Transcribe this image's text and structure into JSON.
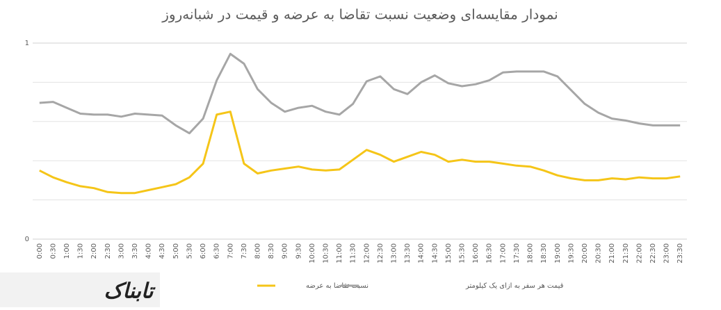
{
  "chart_data": {
    "type": "line",
    "title": "نمودار مقایسه‌ای وضعیت نسبت تقاضا به عرضه و قیمت در شبانه‌روز",
    "categories": [
      "0:00",
      "0:30",
      "1:00",
      "1:30",
      "2:00",
      "2:30",
      "3:00",
      "3:30",
      "4:00",
      "4:30",
      "5:00",
      "5:30",
      "6:00",
      "6:30",
      "7:00",
      "7:30",
      "8:00",
      "8:30",
      "9:00",
      "9:30",
      "10:00",
      "10:30",
      "11:00",
      "11:30",
      "12:00",
      "12:30",
      "13:00",
      "13:30",
      "14:00",
      "14:30",
      "15:00",
      "15:30",
      "16:00",
      "16:30",
      "17:00",
      "17:30",
      "18:00",
      "18:30",
      "19:00",
      "19:30",
      "20:00",
      "20:30",
      "21:00",
      "21:30",
      "22:00",
      "22:30",
      "23:00",
      "23:30"
    ],
    "series": [
      {
        "name": "نسبت تقاضا به عرضه",
        "color": "#f5c518",
        "values": [
          0.35,
          0.315,
          0.29,
          0.27,
          0.26,
          0.24,
          0.235,
          0.235,
          0.25,
          0.265,
          0.28,
          0.315,
          0.385,
          0.635,
          0.65,
          0.385,
          0.335,
          0.35,
          0.36,
          0.37,
          0.355,
          0.35,
          0.355,
          0.405,
          0.455,
          0.43,
          0.395,
          0.42,
          0.445,
          0.43,
          0.395,
          0.405,
          0.395,
          0.395,
          0.385,
          0.375,
          0.37,
          0.35,
          0.325,
          0.31,
          0.3,
          0.3,
          0.31,
          0.305,
          0.315,
          0.31,
          0.31,
          0.32
        ]
      },
      {
        "name": "قیمت هر سفر به ازای یک کیلومتر",
        "color": "#a6a6a6",
        "values": [
          0.695,
          0.7,
          0.67,
          0.64,
          0.635,
          0.635,
          0.625,
          0.64,
          0.635,
          0.63,
          0.58,
          0.54,
          0.615,
          0.81,
          0.945,
          0.895,
          0.765,
          0.695,
          0.65,
          0.67,
          0.68,
          0.65,
          0.635,
          0.69,
          0.805,
          0.83,
          0.765,
          0.74,
          0.8,
          0.835,
          0.795,
          0.78,
          0.79,
          0.81,
          0.85,
          0.855,
          0.855,
          0.855,
          0.83,
          0.76,
          0.69,
          0.645,
          0.615,
          0.605,
          0.59,
          0.58,
          0.58,
          0.58
        ]
      }
    ],
    "ylim": [
      0,
      1
    ],
    "yticks": [
      0,
      1
    ],
    "gridlines": [
      0.2,
      0.4,
      0.6,
      0.8
    ],
    "grid": true,
    "legend": "bottom",
    "watermark": "تابناک"
  }
}
